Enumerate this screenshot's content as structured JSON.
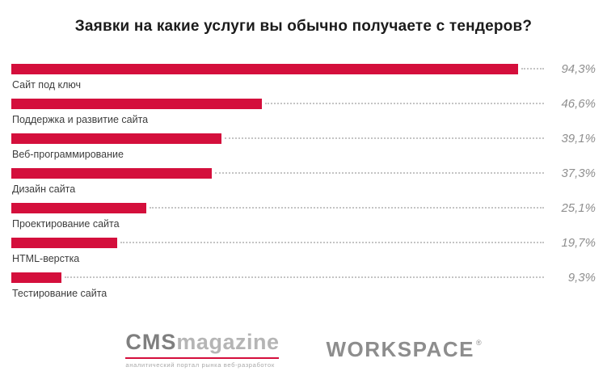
{
  "title": "Заявки на какие услуги вы обычно получаете с тендеров?",
  "chart_data": {
    "type": "bar",
    "orientation": "horizontal",
    "title": "Заявки на какие услуги вы обычно получаете с тендеров?",
    "categories": [
      "Сайт под ключ",
      "Поддержка и развитие сайта",
      "Веб-программирование",
      "Дизайн сайта",
      "Проектирование сайта",
      "HTML-верстка",
      "Тестирование сайта"
    ],
    "values": [
      94.3,
      46.6,
      39.1,
      37.3,
      25.1,
      19.7,
      9.3
    ],
    "value_labels": [
      "94,3%",
      "46,6%",
      "39,1%",
      "37,3%",
      "25,1%",
      "19,7%",
      "9,3%"
    ],
    "xlim": [
      0,
      100
    ],
    "bar_color": "#d40f3c",
    "value_label_color": "#8f8f8f",
    "grid": false,
    "legend": false
  },
  "footer": {
    "cms_logo": {
      "word_primary": "CMS",
      "word_secondary": "magazine",
      "tagline": "аналитический портал рынка веб-разработок",
      "rule_color": "#d40f3c"
    },
    "workspace_logo": {
      "text": "WORKSPACE",
      "registered_mark": "®"
    }
  }
}
